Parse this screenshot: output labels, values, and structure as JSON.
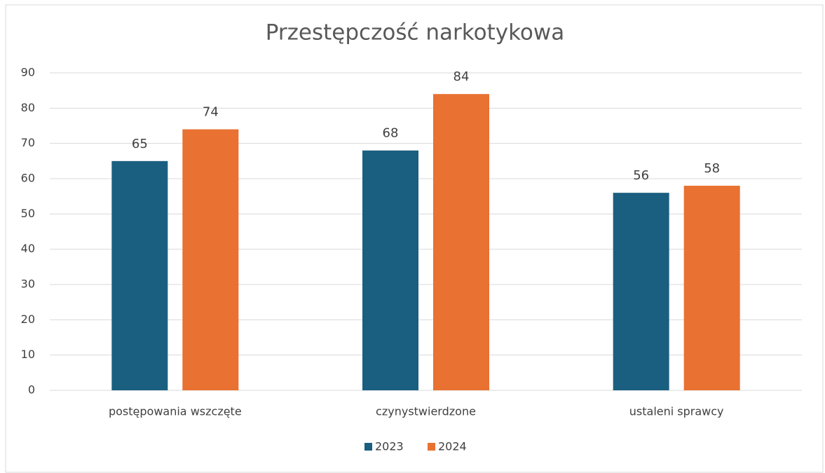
{
  "chart_data": {
    "type": "bar",
    "title": "Przestępczość narkotykowa",
    "categories": [
      "postępowania wszczęte",
      "czynystwierdzone",
      "ustaleni sprawcy"
    ],
    "series": [
      {
        "name": "2023",
        "color": "#1b5f80",
        "values": [
          65,
          68,
          56
        ]
      },
      {
        "name": "2024",
        "color": "#e97132",
        "values": [
          74,
          84,
          58
        ]
      }
    ],
    "ylim": [
      0,
      90
    ],
    "yticks": [
      0,
      10,
      20,
      30,
      40,
      50,
      60,
      70,
      80,
      90
    ],
    "grid": true,
    "legend": "bottom"
  }
}
